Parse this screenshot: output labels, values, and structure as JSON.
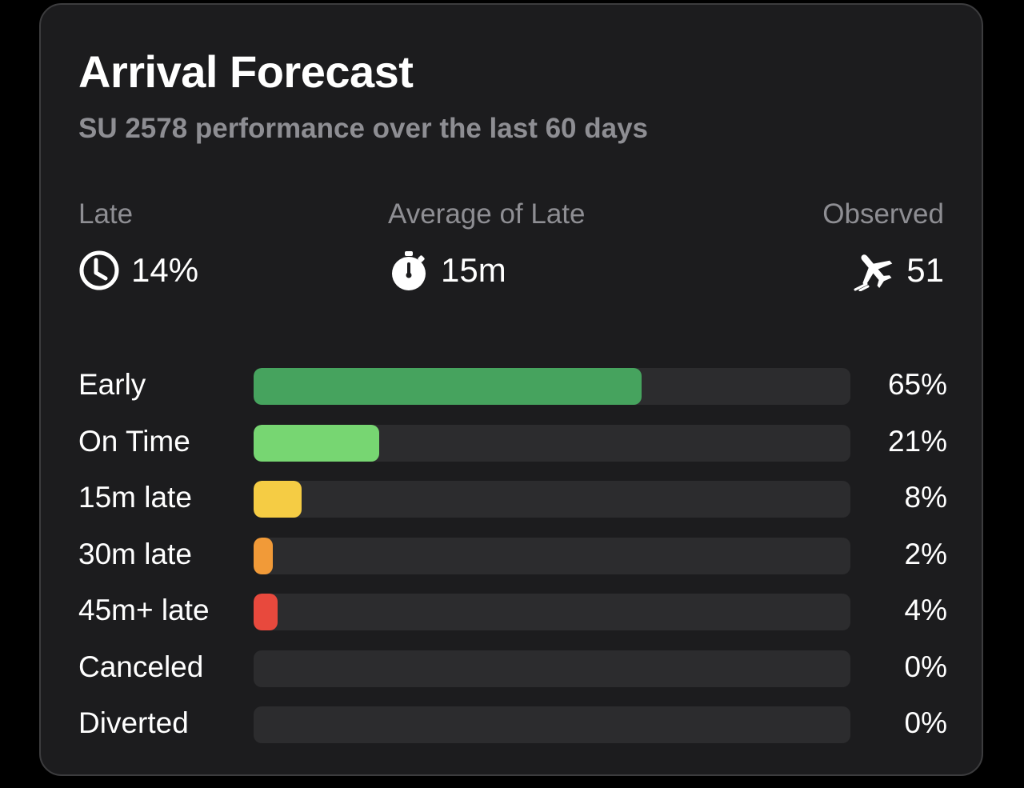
{
  "card": {
    "title": "Arrival Forecast",
    "subtitle": "SU 2578 performance over the last 60 days"
  },
  "stats": {
    "late": {
      "label": "Late",
      "value": "14%",
      "icon": "clock-icon"
    },
    "average_late": {
      "label": "Average of Late",
      "value": "15m",
      "icon": "stopwatch-icon"
    },
    "observed": {
      "label": "Observed",
      "value": "51",
      "icon": "airplane-landing-icon"
    }
  },
  "distribution": [
    {
      "label": "Early",
      "percent_text": "65%",
      "fraction": 0.65,
      "color": "#46a35e"
    },
    {
      "label": "On Time",
      "percent_text": "21%",
      "fraction": 0.21,
      "color": "#77d672"
    },
    {
      "label": "15m late",
      "percent_text": "8%",
      "fraction": 0.08,
      "color": "#f5cc44"
    },
    {
      "label": "30m late",
      "percent_text": "2%",
      "fraction": 0.02,
      "color": "#f19a38"
    },
    {
      "label": "45m+ late",
      "percent_text": "4%",
      "fraction": 0.04,
      "color": "#e8493d"
    },
    {
      "label": "Canceled",
      "percent_text": "0%",
      "fraction": 0.0,
      "color": "#8e8e93"
    },
    {
      "label": "Diverted",
      "percent_text": "0%",
      "fraction": 0.0,
      "color": "#8e8e93"
    }
  ]
}
